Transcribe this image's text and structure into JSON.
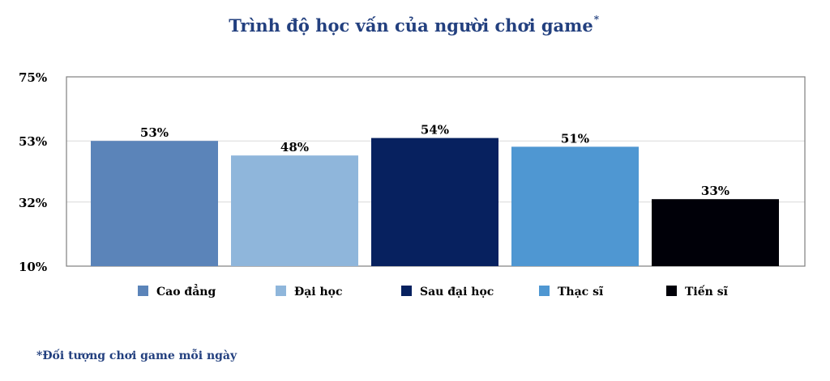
{
  "chart_data": {
    "type": "bar",
    "title": "Trình độ học vấn của người chơi game",
    "title_marker": "*",
    "categories": [
      "Cao đẳng",
      "Đại học",
      "Sau đại học",
      "Thạc sĩ",
      "Tiến sĩ"
    ],
    "values": [
      53,
      48,
      54,
      51,
      33
    ],
    "data_labels": [
      "53%",
      "48%",
      "54%",
      "51%",
      "33%"
    ],
    "colors": [
      "#5b84b9",
      "#8fb6db",
      "#07215f",
      "#4f97d2",
      "#000008"
    ],
    "yticks": [
      10,
      32,
      53,
      75
    ],
    "ytick_labels": [
      "10%",
      "32%",
      "53%",
      "75%"
    ],
    "ylim": [
      10,
      75
    ],
    "grid": true,
    "legend_position": "bottom",
    "xlabel": "",
    "ylabel": ""
  },
  "footnote": "*Đối tượng chơi game mỗi ngày",
  "title_color": "#23407f"
}
